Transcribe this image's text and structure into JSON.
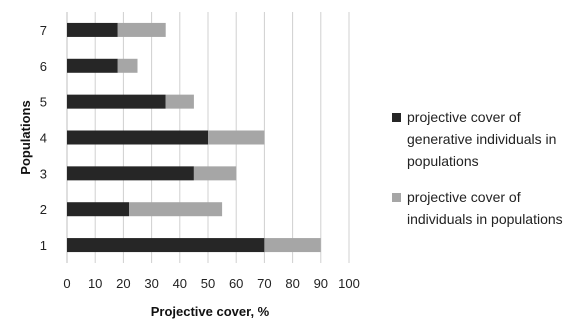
{
  "chart_data": {
    "type": "bar",
    "orientation": "horizontal",
    "stacked": true,
    "categories": [
      "1",
      "2",
      "3",
      "4",
      "5",
      "6",
      "7"
    ],
    "series": [
      {
        "name": "projective cover of generative individuals in populations",
        "color": "#262626",
        "values": [
          70,
          22,
          45,
          50,
          35,
          18,
          18
        ]
      },
      {
        "name": "projective cover of individuals in populations",
        "color": "#a6a6a6",
        "values": [
          20,
          33,
          15,
          20,
          10,
          7,
          17
        ]
      }
    ],
    "xlabel": "Projective cover, %",
    "ylabel": "Populations",
    "xlim": [
      0,
      100
    ],
    "xticks": [
      "0",
      "10",
      "20",
      "30",
      "40",
      "50",
      "60",
      "70",
      "80",
      "90",
      "100"
    ],
    "grid": "vertical",
    "legend_position": "right"
  }
}
